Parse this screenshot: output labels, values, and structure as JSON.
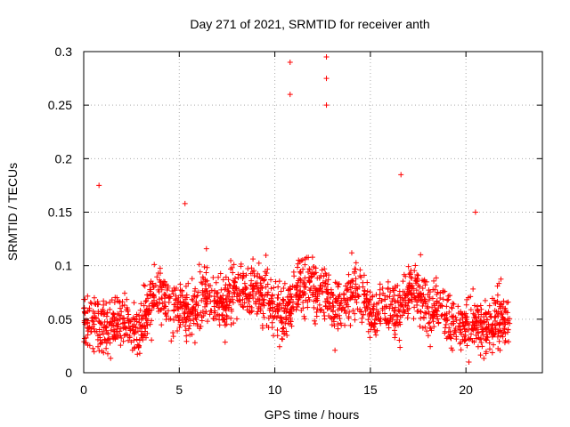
{
  "chart_data": {
    "type": "scatter",
    "title": "Day 271 of 2021, SRMTID for receiver anth",
    "xlabel": "GPS time / hours",
    "ylabel": "SRMTID / TECUs",
    "xlim": [
      0,
      24
    ],
    "ylim": [
      0,
      0.3
    ],
    "xticks": [
      0,
      5,
      10,
      15,
      20
    ],
    "yticks": [
      0,
      0.05,
      0.1,
      0.15,
      0.2,
      0.25,
      0.3
    ],
    "xtick_labels": [
      "0",
      "5",
      "10",
      "15",
      "20"
    ],
    "ytick_labels": [
      "0",
      "0.05",
      "0.1",
      "0.15",
      "0.2",
      "0.25",
      "0.3"
    ],
    "grid": true,
    "marker": "+",
    "series": [
      {
        "name": "SRMTID",
        "color": "#ff0000",
        "description": "Dense scatter of ~2000 points spanning 0 to ~22.3 h; most values 0.02-0.12 TECU; enhanced activity 10-14 h with peaks near 0.29 at ~10.8 h and ~12.7 h.",
        "x_range": [
          0,
          22.3
        ],
        "y_range": [
          0.01,
          0.295
        ],
        "notable_points": [
          {
            "x": 0.8,
            "y": 0.175
          },
          {
            "x": 5.3,
            "y": 0.158
          },
          {
            "x": 10.8,
            "y": 0.29
          },
          {
            "x": 10.8,
            "y": 0.26
          },
          {
            "x": 12.7,
            "y": 0.295
          },
          {
            "x": 12.7,
            "y": 0.275
          },
          {
            "x": 12.7,
            "y": 0.25
          },
          {
            "x": 16.6,
            "y": 0.185
          },
          {
            "x": 20.5,
            "y": 0.15
          }
        ]
      }
    ]
  }
}
